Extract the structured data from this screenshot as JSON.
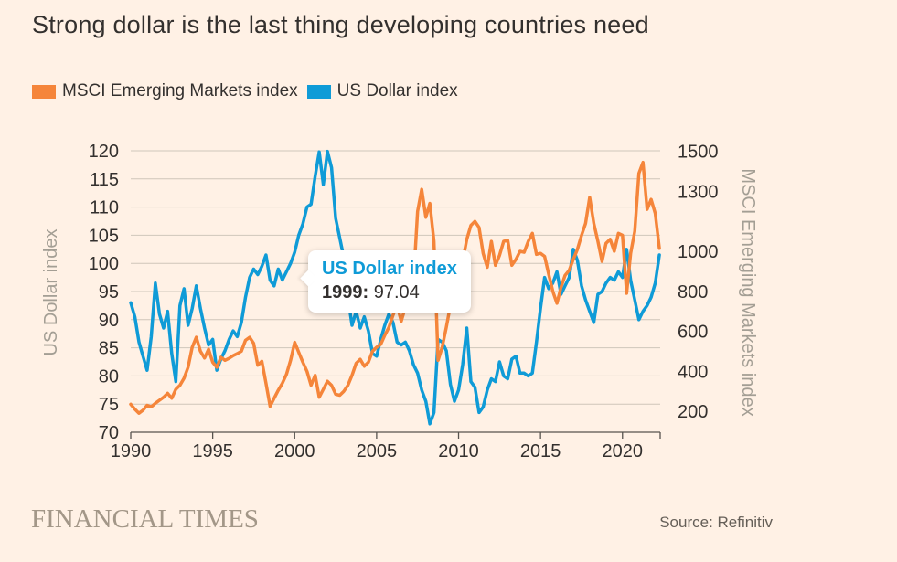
{
  "title": "Strong dollar is the last thing developing countries need",
  "legend": [
    {
      "label": "MSCI Emerging Markets index",
      "color": "#F5853A"
    },
    {
      "label": "US Dollar index",
      "color": "#0F9BD7"
    }
  ],
  "tooltip": {
    "series": "US Dollar index",
    "year": "1999:",
    "value": "97.04"
  },
  "footer": {
    "brand": "FINANCIAL TIMES",
    "source": "Source: Refinitiv"
  },
  "colors": {
    "background": "#FFF1E5",
    "gridline": "#CFC6BA",
    "axis_line": "#57534E",
    "tick_label": "#33302E",
    "axis_title": "#A39E94",
    "orange": "#F5853A",
    "blue": "#0F9BD7"
  },
  "chart_data": {
    "type": "line",
    "x_domain": [
      1990,
      2022.3
    ],
    "x_ticks": [
      1990,
      1995,
      2000,
      2005,
      2010,
      2015,
      2020
    ],
    "left_axis": {
      "label": "US Dollar index",
      "range": [
        70,
        120
      ],
      "ticks": [
        120,
        115,
        110,
        105,
        100,
        95,
        90,
        85,
        80,
        75,
        70
      ]
    },
    "right_axis": {
      "label": "MSCI Emerging Markets index",
      "range": [
        95,
        1503
      ],
      "ticks": [
        1500,
        1300,
        1000,
        800,
        600,
        400,
        200
      ]
    },
    "legend_position": "top-left",
    "grid": "horizontal",
    "series": [
      {
        "name": "US Dollar index",
        "axis": "left",
        "color": "#0F9BD7",
        "start": 1990,
        "step": 0.25,
        "values": [
          93,
          90.5,
          86,
          83.5,
          81,
          87,
          96.5,
          91,
          88.5,
          91.5,
          84,
          79,
          92.5,
          95.5,
          89,
          92,
          96,
          92,
          88.5,
          85.5,
          86.5,
          81,
          83,
          84.5,
          86.5,
          88,
          87,
          89.5,
          94,
          97.5,
          99,
          98,
          99.5,
          101.5,
          97,
          96,
          99,
          97.04,
          98.5,
          100,
          102,
          105,
          107,
          110,
          110.5,
          115.5,
          119.8,
          114,
          119.9,
          117,
          108,
          104.5,
          101,
          94,
          89,
          91.5,
          88.5,
          90.5,
          88,
          84,
          83.5,
          86.5,
          89,
          91,
          89.5,
          86,
          85.5,
          86,
          84.5,
          82,
          80.5,
          77.5,
          75.5,
          71.5,
          73.5,
          86.5,
          86,
          84.5,
          78.5,
          75.5,
          77.5,
          82,
          88.5,
          79,
          78,
          73.5,
          74.5,
          77.5,
          79.5,
          79,
          82.5,
          80,
          79.5,
          83,
          83.5,
          80.5,
          80.5,
          80,
          80.5,
          86,
          92,
          97.5,
          95.5,
          96.5,
          98.5,
          94.5,
          96,
          97.5,
          102.5,
          100.5,
          96,
          93.5,
          91.5,
          89.5,
          94.5,
          95,
          96.5,
          97.5,
          97,
          98.5,
          97.5,
          102.5,
          97,
          93.5,
          90,
          91.5,
          92.5,
          94,
          96.5,
          101.5
        ]
      },
      {
        "name": "MSCI Emerging Markets index",
        "axis": "right",
        "color": "#F5853A",
        "start": 1990,
        "step": 0.25,
        "values": [
          235,
          210,
          190,
          205,
          230,
          222,
          240,
          255,
          270,
          290,
          265,
          310,
          330,
          365,
          420,
          520,
          570,
          500,
          466,
          510,
          445,
          420,
          470,
          455,
          465,
          478,
          488,
          500,
          555,
          570,
          540,
          430,
          450,
          340,
          225,
          265,
          305,
          340,
          385,
          455,
          545,
          495,
          445,
          400,
          330,
          380,
          270,
          310,
          350,
          330,
          285,
          280,
          300,
          330,
          380,
          440,
          460,
          425,
          445,
          500,
          520,
          535,
          580,
          620,
          680,
          730,
          650,
          720,
          780,
          850,
          1200,
          1310,
          1170,
          1240,
          1050,
          455,
          520,
          620,
          730,
          820,
          880,
          950,
          1060,
          1130,
          1150,
          1120,
          990,
          920,
          1050,
          930,
          980,
          1050,
          1055,
          930,
          960,
          1000,
          995,
          1050,
          1090,
          985,
          990,
          975,
          885,
          800,
          740,
          820,
          880,
          905,
          960,
          1010,
          1080,
          1140,
          1270,
          1140,
          1050,
          950,
          1040,
          1060,
          1000,
          1090,
          1080,
          790,
          990,
          1100,
          1390,
          1445,
          1210,
          1260,
          1190,
          1015
        ]
      }
    ]
  }
}
